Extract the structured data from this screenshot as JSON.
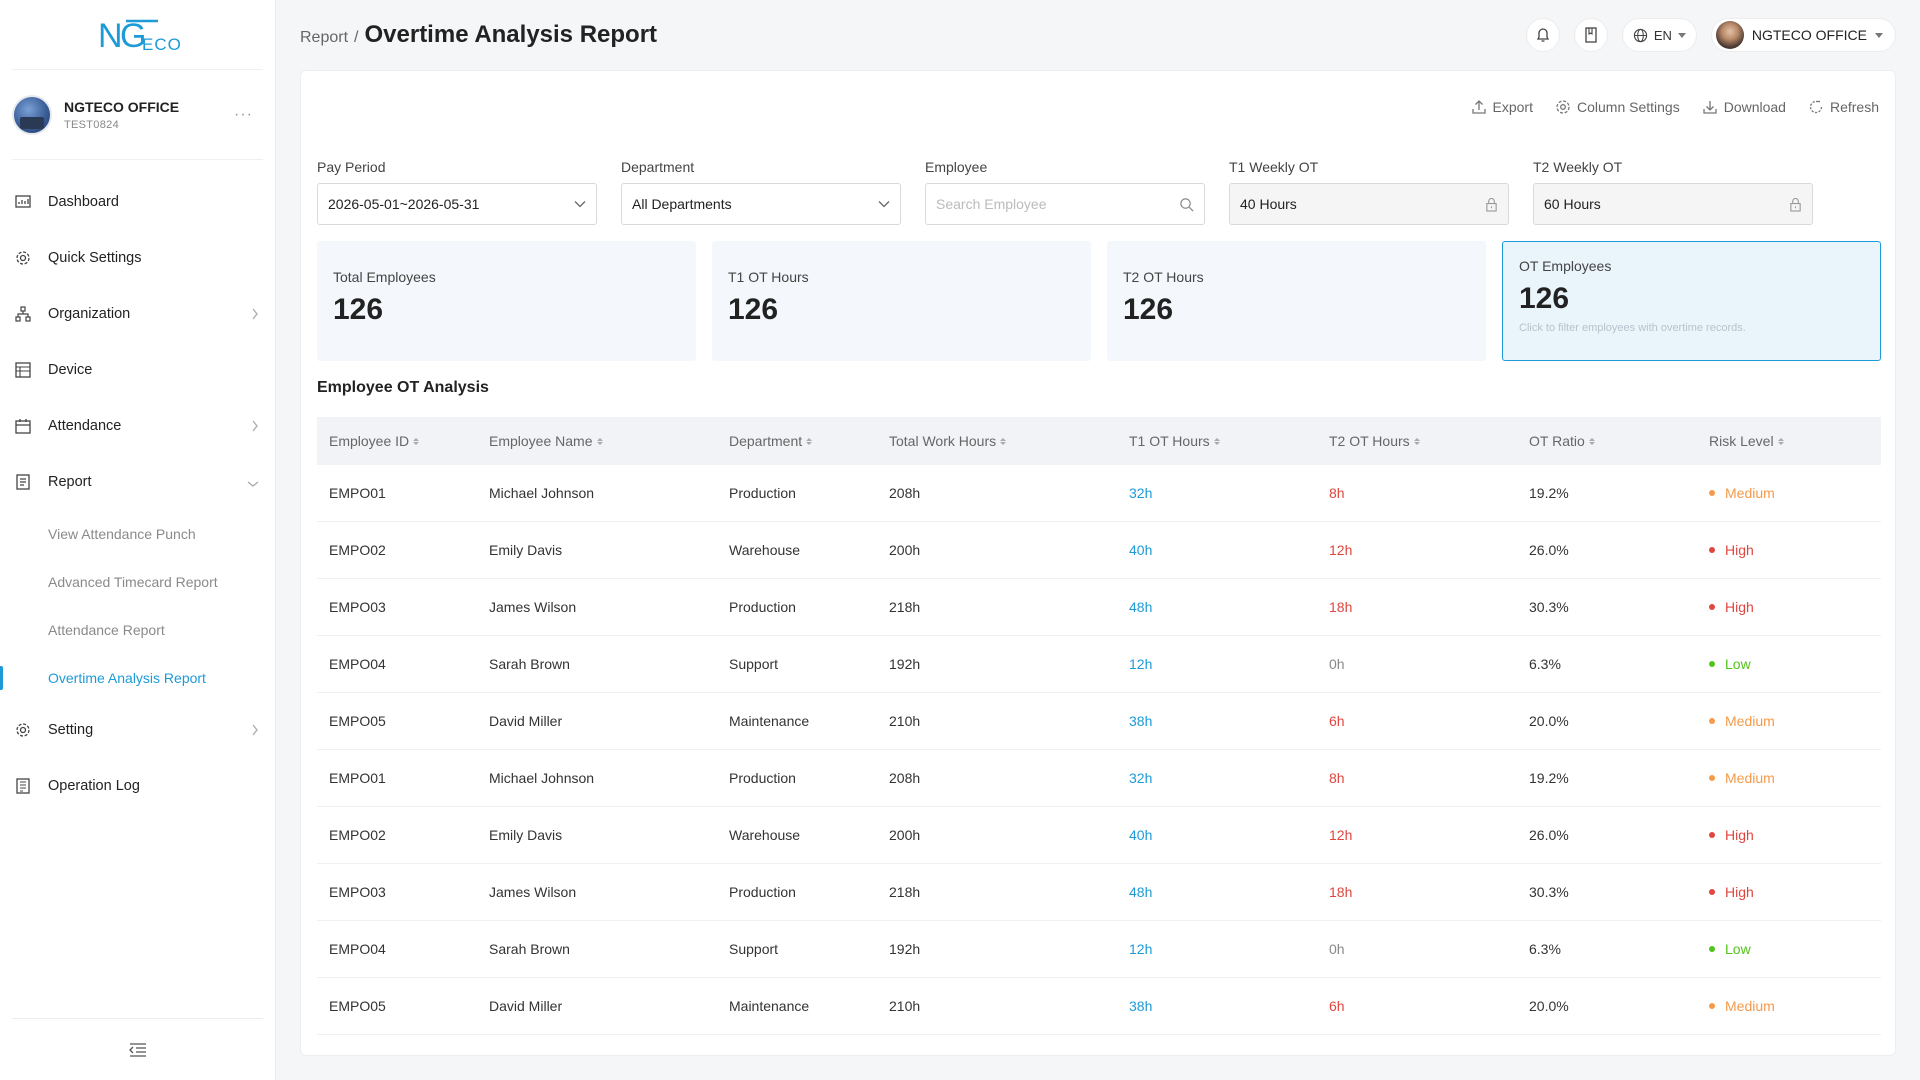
{
  "app": {
    "logo_text": "NGTECO",
    "org_name": "NGTECO OFFICE",
    "org_code": "TEST0824"
  },
  "sidebar": {
    "items": [
      {
        "label": "Dashboard",
        "icon": "dashboard-icon"
      },
      {
        "label": "Quick Settings",
        "icon": "gear-icon"
      },
      {
        "label": "Organization",
        "icon": "org-chart-icon"
      },
      {
        "label": "Device",
        "icon": "device-icon"
      },
      {
        "label": "Attendance",
        "icon": "calendar-icon"
      },
      {
        "label": "Report",
        "icon": "report-icon"
      },
      {
        "label": "Setting",
        "icon": "gear-icon"
      },
      {
        "label": "Operation Log",
        "icon": "log-icon"
      }
    ],
    "report_sub": [
      "View Attendance Punch",
      "Advanced Timecard Report",
      "Attendance Report",
      "Overtime Analysis Report"
    ]
  },
  "header": {
    "breadcrumb_parent": "Report",
    "breadcrumb_sep": "/",
    "title": "Overtime Analysis Report",
    "language": "EN",
    "user_name": "NGTECO OFFICE"
  },
  "toolbar": {
    "export": "Export",
    "column_settings": "Column Settings",
    "download": "Download",
    "refresh": "Refresh"
  },
  "filters": {
    "pay_period": {
      "label": "Pay Period",
      "value": "2026-05-01~2026-05-31"
    },
    "department": {
      "label": "Department",
      "value": "All Departments"
    },
    "employee": {
      "label": "Employee",
      "placeholder": "Search Employee"
    },
    "t1_weekly": {
      "label": "T1 Weekly OT",
      "value": "40 Hours"
    },
    "t2_weekly": {
      "label": "T2 Weekly OT",
      "value": "60 Hours"
    }
  },
  "stats": [
    {
      "label": "Total Employees",
      "value": "126"
    },
    {
      "label": "T1 OT Hours",
      "value": "126"
    },
    {
      "label": "T2 OT Hours",
      "value": "126"
    },
    {
      "label": "OT Employees",
      "value": "126",
      "hint": "Click to filter employees with overtime records."
    }
  ],
  "table": {
    "title": "Employee OT Analysis",
    "columns": [
      "Employee ID",
      "Employee Name",
      "Department",
      "Total Work Hours",
      "T1 OT Hours",
      "T2 OT Hours",
      "OT Ratio",
      "Risk Level"
    ],
    "rows": [
      {
        "id": "EMPO01",
        "name": "Michael Johnson",
        "dept": "Production",
        "total": "208h",
        "t1": "32h",
        "t2": "8h",
        "ratio": "19.2%",
        "risk": "Medium"
      },
      {
        "id": "EMPO02",
        "name": "Emily Davis",
        "dept": "Warehouse",
        "total": "200h",
        "t1": "40h",
        "t2": "12h",
        "ratio": "26.0%",
        "risk": "High"
      },
      {
        "id": "EMPO03",
        "name": "James Wilson",
        "dept": "Production",
        "total": "218h",
        "t1": "48h",
        "t2": "18h",
        "ratio": "30.3%",
        "risk": "High"
      },
      {
        "id": "EMPO04",
        "name": "Sarah Brown",
        "dept": "Support",
        "total": "192h",
        "t1": "12h",
        "t2": "0h",
        "ratio": "6.3%",
        "risk": "Low"
      },
      {
        "id": "EMPO05",
        "name": "David Miller",
        "dept": "Maintenance",
        "total": "210h",
        "t1": "38h",
        "t2": "6h",
        "ratio": "20.0%",
        "risk": "Medium"
      },
      {
        "id": "EMPO01",
        "name": "Michael Johnson",
        "dept": "Production",
        "total": "208h",
        "t1": "32h",
        "t2": "8h",
        "ratio": "19.2%",
        "risk": "Medium"
      },
      {
        "id": "EMPO02",
        "name": "Emily Davis",
        "dept": "Warehouse",
        "total": "200h",
        "t1": "40h",
        "t2": "12h",
        "ratio": "26.0%",
        "risk": "High"
      },
      {
        "id": "EMPO03",
        "name": "James Wilson",
        "dept": "Production",
        "total": "218h",
        "t1": "48h",
        "t2": "18h",
        "ratio": "30.3%",
        "risk": "High"
      },
      {
        "id": "EMPO04",
        "name": "Sarah Brown",
        "dept": "Support",
        "total": "192h",
        "t1": "12h",
        "t2": "0h",
        "ratio": "6.3%",
        "risk": "Low"
      },
      {
        "id": "EMPO05",
        "name": "David Miller",
        "dept": "Maintenance",
        "total": "210h",
        "t1": "38h",
        "t2": "6h",
        "ratio": "20.0%",
        "risk": "Medium"
      }
    ]
  },
  "colors": {
    "accent": "#1e9bd7",
    "t2": "#e0463f",
    "risk_high": "#e0463f",
    "risk_medium": "#f59a4a",
    "risk_low": "#52c41a"
  }
}
